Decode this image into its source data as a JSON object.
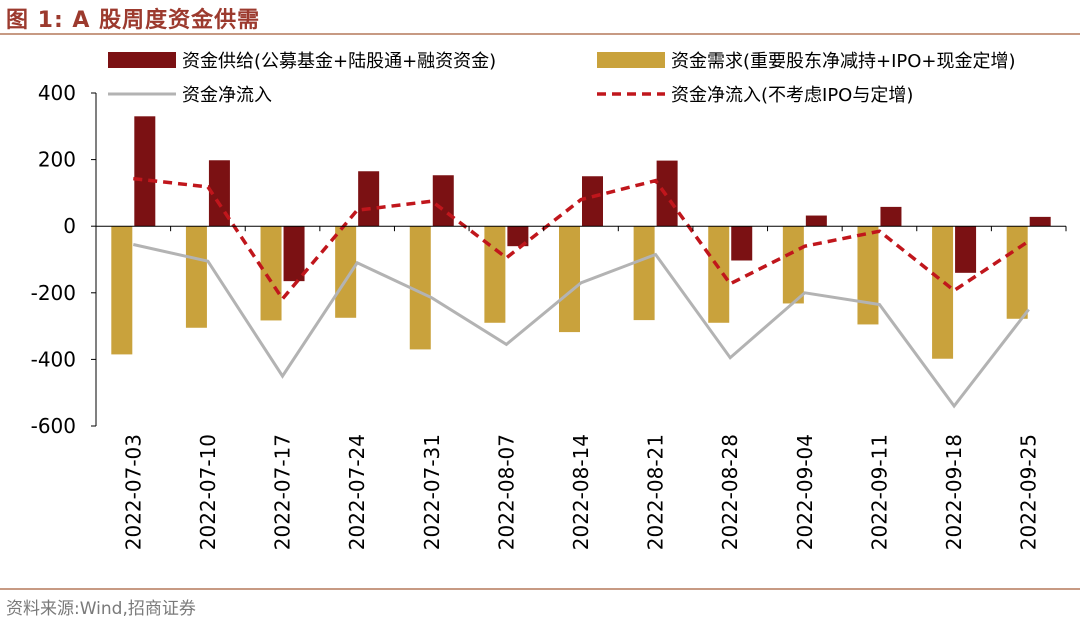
{
  "header": {
    "title": "图 1:  A 股周度资金供需"
  },
  "footer": {
    "source": "资料来源:Wind,招商证券"
  },
  "chart_data": {
    "type": "bar",
    "title": "A 股周度资金供需",
    "categories": [
      "2022-07-03",
      "2022-07-10",
      "2022-07-17",
      "2022-07-24",
      "2022-07-31",
      "2022-08-07",
      "2022-08-14",
      "2022-08-21",
      "2022-08-28",
      "2022-09-04",
      "2022-09-11",
      "2022-09-18",
      "2022-09-25"
    ],
    "ylim": [
      -600,
      400
    ],
    "yticks": [
      400,
      200,
      0,
      -200,
      -400,
      -600
    ],
    "ytick_labels": [
      "400",
      "200",
      "0",
      "-200",
      "-400",
      "-600"
    ],
    "grid": false,
    "legend_position": "top",
    "series": [
      {
        "name": "资金供给(公募基金+陆股通+融资资金)",
        "kind": "bar",
        "color": "#7b1113",
        "values": [
          330,
          198,
          -165,
          165,
          153,
          -60,
          150,
          197,
          -103,
          32,
          58,
          -140,
          28
        ]
      },
      {
        "name": "资金需求(重要股东净减持+IPO+现金定增)",
        "kind": "bar",
        "color": "#c9a23c",
        "values": [
          -385,
          -305,
          -283,
          -275,
          -370,
          -290,
          -318,
          -282,
          -290,
          -232,
          -295,
          -398,
          -278
        ]
      },
      {
        "name": "资金净流入",
        "kind": "line",
        "color": "#b3b3b3",
        "dash": "solid",
        "values": [
          -55,
          -105,
          -450,
          -110,
          -215,
          -355,
          -170,
          -85,
          -395,
          -200,
          -235,
          -540,
          -250
        ]
      },
      {
        "name": "资金净流入(不考虑IPO与定增)",
        "kind": "line",
        "color": "#c0161c",
        "dash": "dashed",
        "values": [
          143,
          118,
          -218,
          48,
          75,
          -95,
          80,
          137,
          -173,
          -60,
          -15,
          -193,
          -45
        ]
      }
    ]
  }
}
